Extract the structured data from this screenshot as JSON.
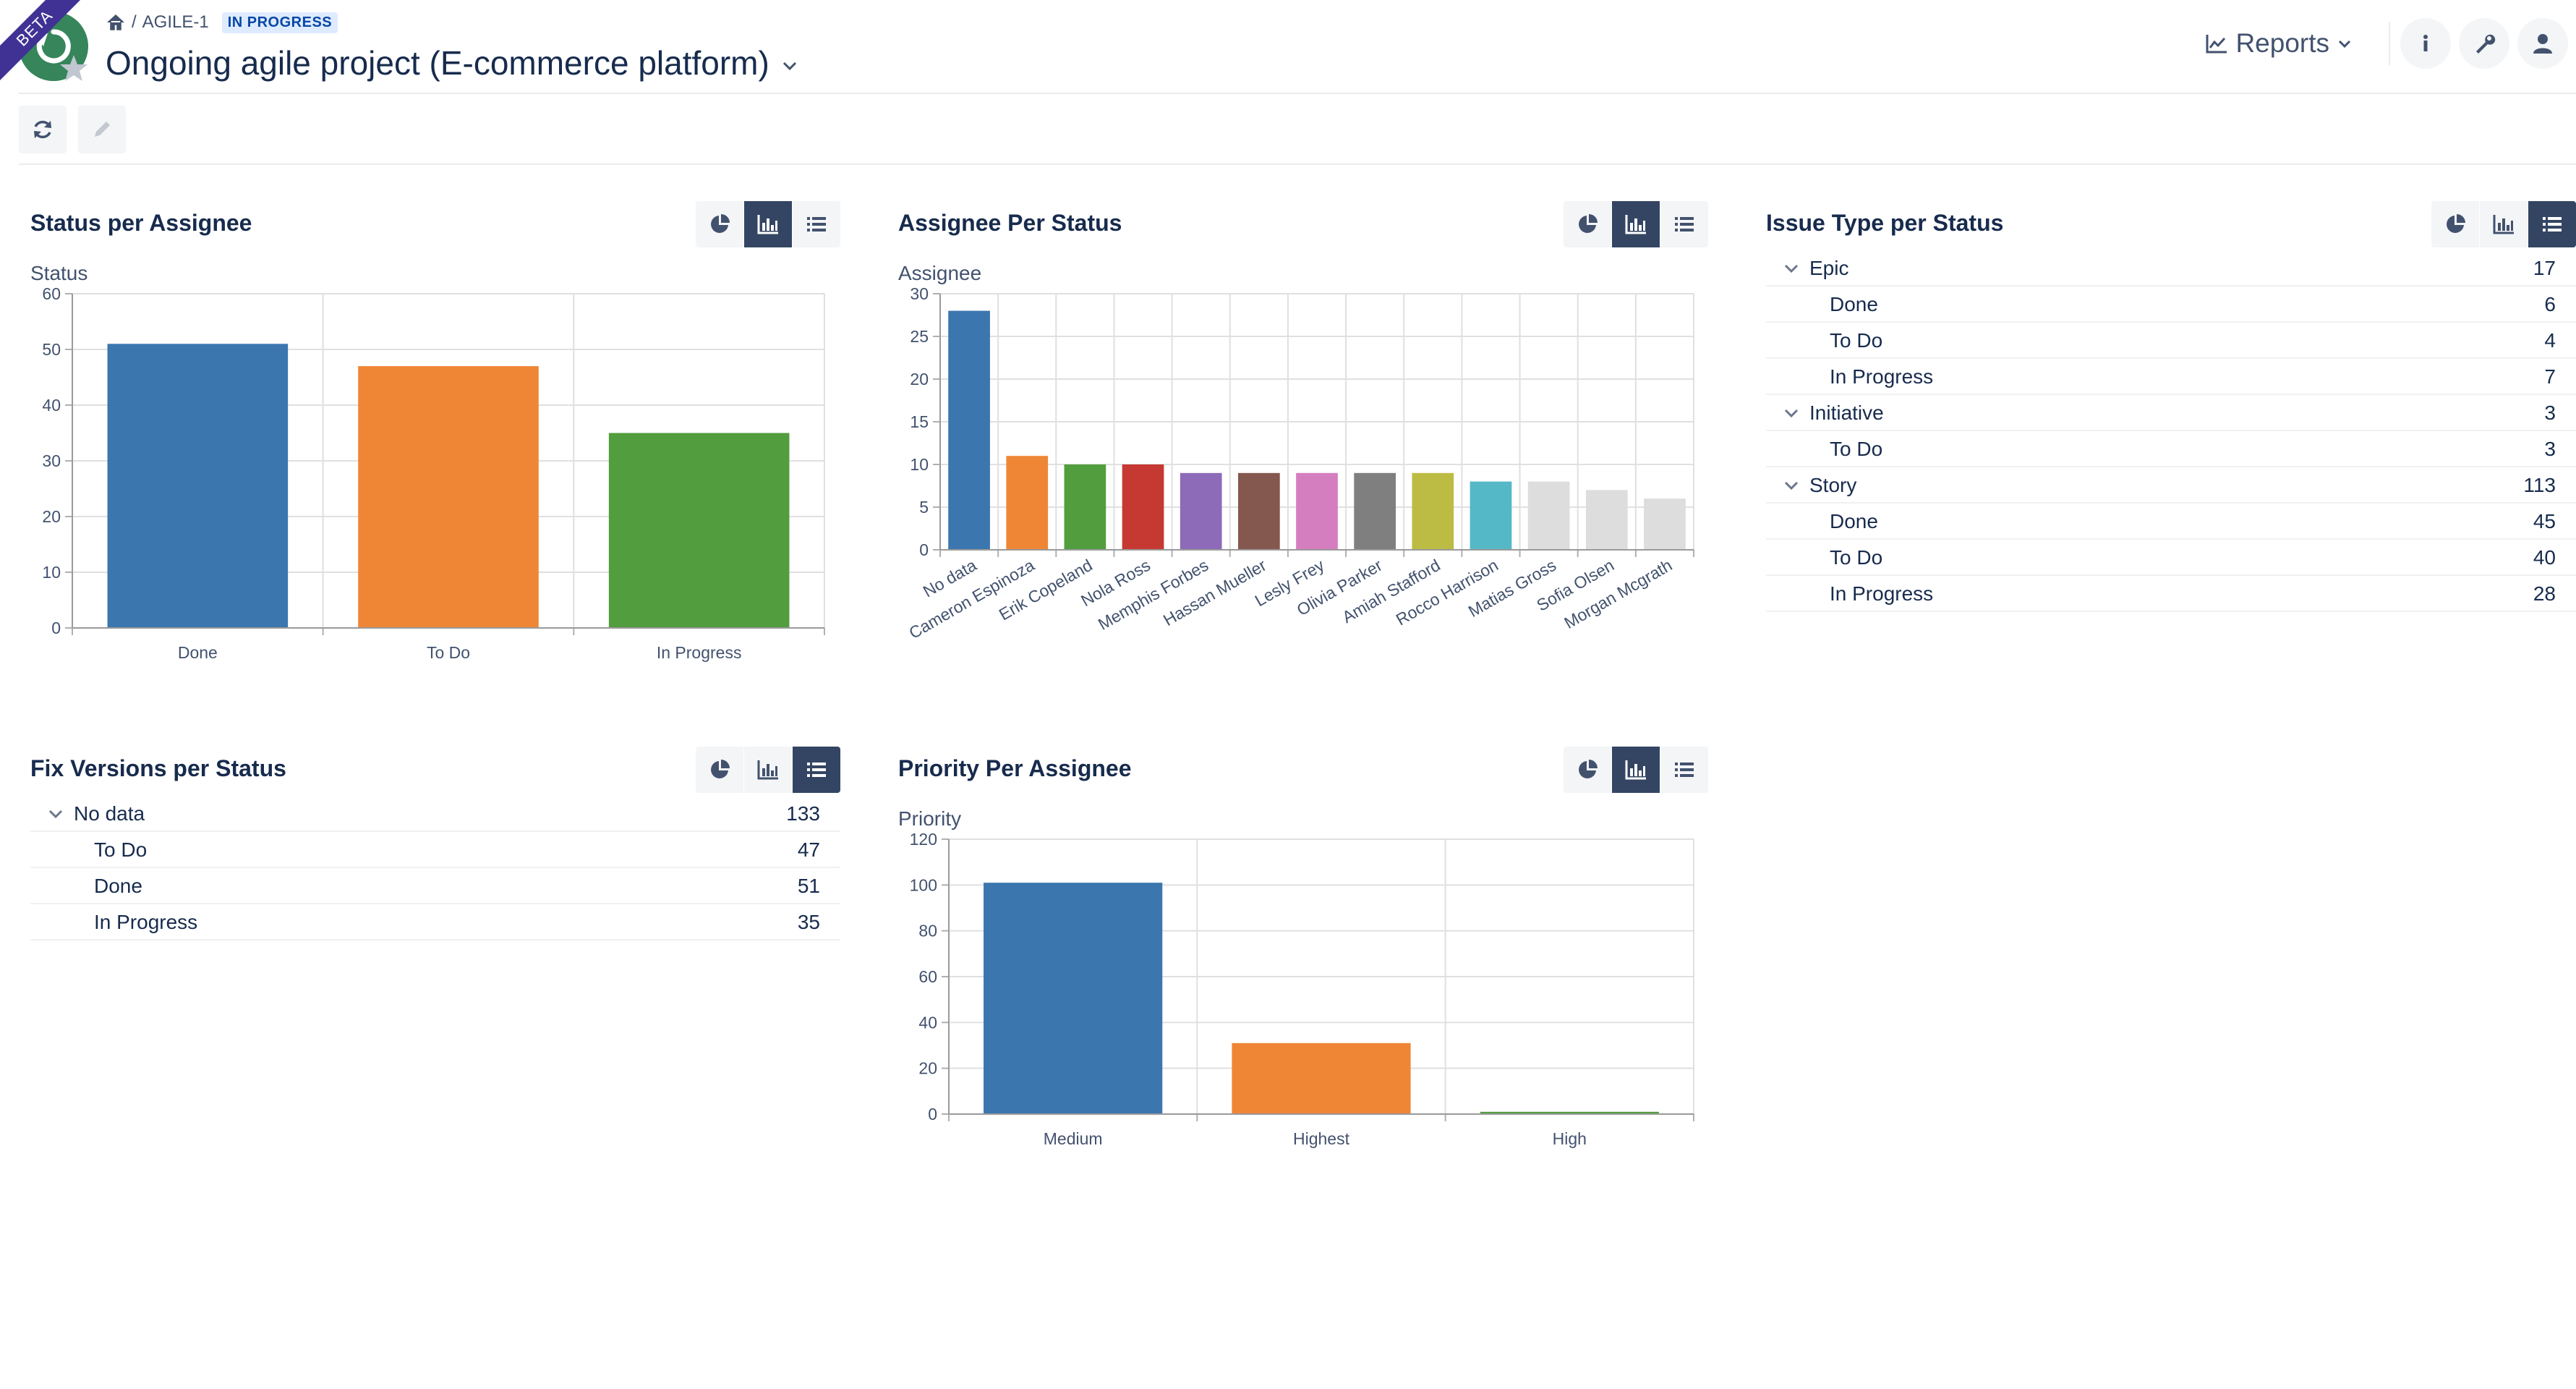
{
  "header": {
    "beta_label": "BETA",
    "breadcrumb": {
      "separator": "/",
      "key": "AGILE-1",
      "status": "IN PROGRESS"
    },
    "title": "Ongoing agile project (E-commerce platform)",
    "reports_label": "Reports"
  },
  "icons": {
    "home": "home-icon",
    "refresh": "refresh-icon",
    "edit": "pencil-icon",
    "reports": "line-chart-icon",
    "info": "info-icon",
    "settings": "wrench-icon",
    "user": "user-icon",
    "pie": "pie-chart-icon",
    "bar": "bar-chart-icon",
    "list": "list-icon"
  },
  "colors": {
    "brand_green": "#36855b",
    "beta_purple": "#403294",
    "active_toggle": "#344563",
    "palette": [
      "#3b76af",
      "#ef8636",
      "#529d3e",
      "#c53932",
      "#8d6bb8",
      "#84584e",
      "#d57ebf",
      "#7f7f7f",
      "#bcbc45",
      "#55b8c7",
      "#dddddd",
      "#dddddd",
      "#dddddd"
    ]
  },
  "panels": {
    "status_per_assignee": {
      "title": "Status per Assignee",
      "subtitle": "Status",
      "view": "bar"
    },
    "assignee_per_status": {
      "title": "Assignee Per Status",
      "subtitle": "Assignee",
      "view": "bar"
    },
    "issue_type_per_status": {
      "title": "Issue Type per Status",
      "view": "list",
      "rows": [
        {
          "label": "Epic",
          "count": "17",
          "group": true
        },
        {
          "label": "Done",
          "count": "6",
          "group": false
        },
        {
          "label": "To Do",
          "count": "4",
          "group": false
        },
        {
          "label": "In Progress",
          "count": "7",
          "group": false
        },
        {
          "label": "Initiative",
          "count": "3",
          "group": true
        },
        {
          "label": "To Do",
          "count": "3",
          "group": false
        },
        {
          "label": "Story",
          "count": "113",
          "group": true
        },
        {
          "label": "Done",
          "count": "45",
          "group": false
        },
        {
          "label": "To Do",
          "count": "40",
          "group": false
        },
        {
          "label": "In Progress",
          "count": "28",
          "group": false
        }
      ]
    },
    "fix_versions_per_status": {
      "title": "Fix Versions per Status",
      "view": "list",
      "rows": [
        {
          "label": "No data",
          "count": "133",
          "group": true
        },
        {
          "label": "To Do",
          "count": "47",
          "group": false
        },
        {
          "label": "Done",
          "count": "51",
          "group": false
        },
        {
          "label": "In Progress",
          "count": "35",
          "group": false
        }
      ]
    },
    "priority_per_assignee": {
      "title": "Priority Per Assignee",
      "subtitle": "Priority",
      "view": "bar"
    }
  },
  "chart_data": [
    {
      "type": "bar",
      "title": "Status per Assignee",
      "ylabel": "Status",
      "categories": [
        "Done",
        "To Do",
        "In Progress"
      ],
      "values": [
        51,
        47,
        35
      ],
      "ylim": [
        0,
        60
      ],
      "yticks": [
        0,
        10,
        20,
        30,
        40,
        50,
        60
      ],
      "colors": [
        "#3b76af",
        "#ef8636",
        "#529d3e"
      ],
      "grid": true
    },
    {
      "type": "bar",
      "title": "Assignee Per Status",
      "ylabel": "Assignee",
      "categories": [
        "No data",
        "Cameron Espinoza",
        "Erik Copeland",
        "Nola Ross",
        "Memphis Forbes",
        "Hassan Mueller",
        "Lesly Frey",
        "Olivia Parker",
        "Amiah Stafford",
        "Rocco Harrison",
        "Matias Gross",
        "Sofia Olsen",
        "Morgan Mcgrath"
      ],
      "values": [
        28,
        11,
        10,
        10,
        9,
        9,
        9,
        9,
        9,
        8,
        8,
        7,
        6
      ],
      "ylim": [
        0,
        30
      ],
      "yticks": [
        0,
        5,
        10,
        15,
        20,
        25,
        30
      ],
      "colors": [
        "#3b76af",
        "#ef8636",
        "#529d3e",
        "#c53932",
        "#8d6bb8",
        "#84584e",
        "#d57ebf",
        "#7f7f7f",
        "#bcbc45",
        "#55b8c7",
        "#dddddd",
        "#dddddd",
        "#dddddd"
      ],
      "grid": true
    },
    {
      "type": "bar",
      "title": "Priority Per Assignee",
      "ylabel": "Priority",
      "categories": [
        "Medium",
        "Highest",
        "High"
      ],
      "values": [
        101,
        31,
        1
      ],
      "ylim": [
        0,
        120
      ],
      "yticks": [
        0,
        20,
        40,
        60,
        80,
        100,
        120
      ],
      "colors": [
        "#3b76af",
        "#ef8636",
        "#529d3e"
      ],
      "grid": true
    }
  ]
}
